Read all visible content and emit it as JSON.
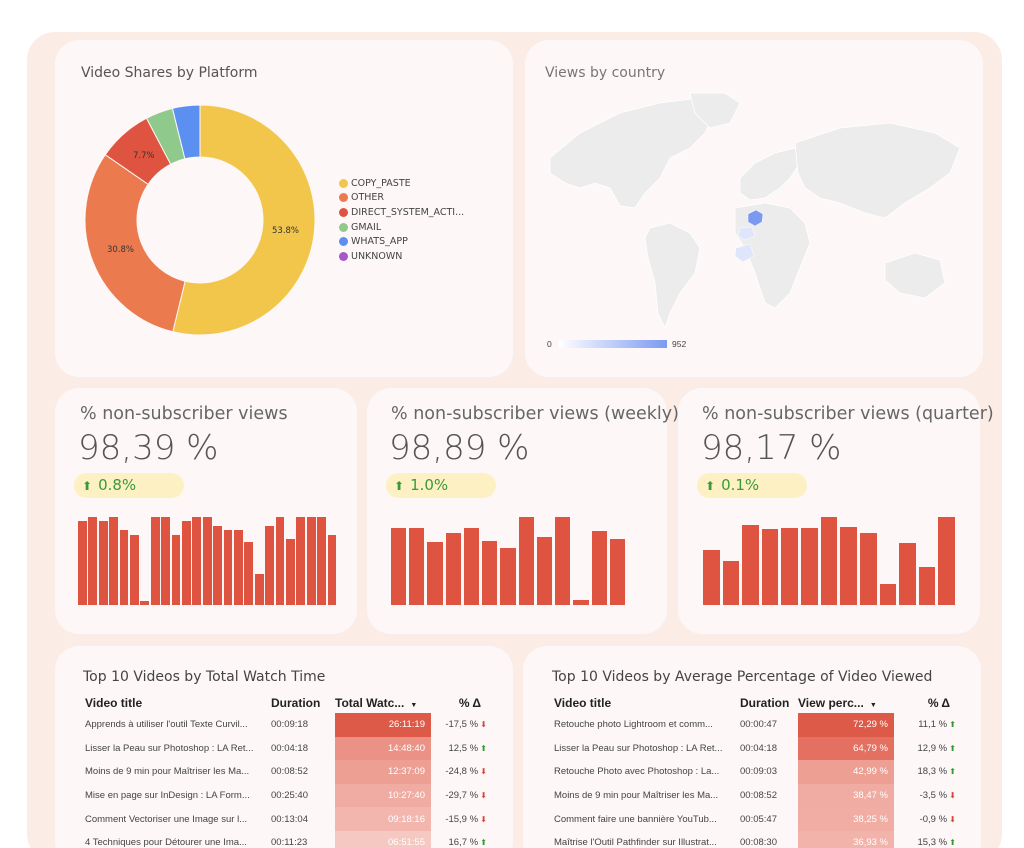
{
  "pie": {
    "title": "Video Shares by Platform",
    "legend": [
      {
        "label": "COPY_PASTE",
        "color": "#f2c64a"
      },
      {
        "label": "OTHER",
        "color": "#ec7a4f"
      },
      {
        "label": "DIRECT_SYSTEM_ACTI...",
        "color": "#df5440"
      },
      {
        "label": "GMAIL",
        "color": "#8fca8c"
      },
      {
        "label": "WHATS_APP",
        "color": "#5b90f0"
      },
      {
        "label": "UNKNOWN",
        "color": "#a757c9"
      }
    ],
    "labels": {
      "copy_paste": "53.8%",
      "other": "30.8%",
      "direct": "7.7%"
    }
  },
  "chart_data": {
    "type": "pie",
    "title": "Video Shares by Platform",
    "categories": [
      "COPY_PASTE",
      "OTHER",
      "DIRECT_SYSTEM_ACTI...",
      "GMAIL",
      "WHATS_APP",
      "UNKNOWN"
    ],
    "values": [
      53.8,
      30.8,
      7.7,
      3.85,
      3.85,
      0
    ],
    "donut": true,
    "legend": "right"
  },
  "map": {
    "title": "Views by country",
    "scale_min": "0",
    "scale_max": "952",
    "highlight_color": "#7c99f2"
  },
  "kpis": [
    {
      "title": "% non-subscriber views",
      "value": "98,39 %",
      "delta": "0.8%",
      "bars": [
        0.95,
        1,
        0.95,
        1,
        0.85,
        0.8,
        0.05,
        1,
        1,
        0.8,
        0.95,
        1,
        1,
        0.9,
        0.85,
        0.85,
        0.72,
        0.35,
        0.9,
        1,
        0.75,
        1,
        1,
        1,
        0.8
      ]
    },
    {
      "title": "% non-subscriber views (weekly)",
      "value": "98,89 %",
      "delta": "1.0%",
      "bars": [
        0.88,
        0.87,
        0.72,
        0.82,
        0.88,
        0.73,
        0.65,
        1,
        0.77,
        1,
        0.06,
        0.84,
        0.75
      ]
    },
    {
      "title": "% non-subscriber views (quarter)",
      "value": "98,17 %",
      "delta": "0.1%",
      "bars": [
        0.63,
        0.5,
        0.91,
        0.86,
        0.88,
        0.88,
        1,
        0.89,
        0.82,
        0.24,
        0.7,
        0.43,
        1
      ]
    }
  ],
  "table1": {
    "title": "Top 10 Videos by Total Watch Time",
    "headers": [
      "Video title",
      "Duration",
      "Total Watc...",
      "% Δ"
    ],
    "rows": [
      {
        "title": "Apprends à utiliser l'outil Texte Curvil...",
        "duration": "00:09:18",
        "metric": "26:11:19",
        "delta": "-17,5 %",
        "dir": "down",
        "heat": "#de5a48"
      },
      {
        "title": "Lisser la Peau sur Photoshop : LA Ret...",
        "duration": "00:04:18",
        "metric": "14:48:40",
        "delta": "12,5 %",
        "dir": "up",
        "heat": "#eb9286"
      },
      {
        "title": "Moins de 9 min pour Maîtriser les Ma...",
        "duration": "00:08:52",
        "metric": "12:37:09",
        "delta": "-24,8 %",
        "dir": "down",
        "heat": "#ee9f94"
      },
      {
        "title": "Mise en page sur InDesign : LA Form...",
        "duration": "00:25:40",
        "metric": "10:27:40",
        "delta": "-29,7 %",
        "dir": "down",
        "heat": "#f0aba2"
      },
      {
        "title": "Comment Vectoriser une Image sur l...",
        "duration": "00:13:04",
        "metric": "09:18:16",
        "delta": "-15,9 %",
        "dir": "down",
        "heat": "#f2b6ae"
      },
      {
        "title": "4 Techniques pour Détourer une Ima...",
        "duration": "00:11:23",
        "metric": "06:51:55",
        "delta": "16,7 %",
        "dir": "up",
        "heat": "#f5c8c2"
      }
    ]
  },
  "table2": {
    "title": "Top 10 Videos by Average Percentage of Video Viewed",
    "headers": [
      "Video title",
      "Duration",
      "View perc...",
      "% Δ"
    ],
    "rows": [
      {
        "title": "Retouche photo Lightroom et comm...",
        "duration": "00:00:47",
        "metric": "72,29 %",
        "delta": "11,1 %",
        "dir": "up",
        "heat": "#de5a48"
      },
      {
        "title": "Lisser la Peau sur Photoshop : LA Ret...",
        "duration": "00:04:18",
        "metric": "64,79 %",
        "delta": "12,9 %",
        "dir": "up",
        "heat": "#e37060"
      },
      {
        "title": "Retouche Photo avec Photoshop : La...",
        "duration": "00:09:03",
        "metric": "42,99 %",
        "delta": "18,3 %",
        "dir": "up",
        "heat": "#ee9f94"
      },
      {
        "title": "Moins de 9 min pour Maîtriser les Ma...",
        "duration": "00:08:52",
        "metric": "38,47 %",
        "delta": "-3,5 %",
        "dir": "down",
        "heat": "#f0aba2"
      },
      {
        "title": "Comment faire une bannière YouTub...",
        "duration": "00:05:47",
        "metric": "38,25 %",
        "delta": "-0,9 %",
        "dir": "down",
        "heat": "#f1ada4"
      },
      {
        "title": "Maîtrise l'Outil Pathfinder sur Illustrat...",
        "duration": "00:08:30",
        "metric": "36,93 %",
        "delta": "15,3 %",
        "dir": "up",
        "heat": "#f2b3ab"
      }
    ]
  }
}
